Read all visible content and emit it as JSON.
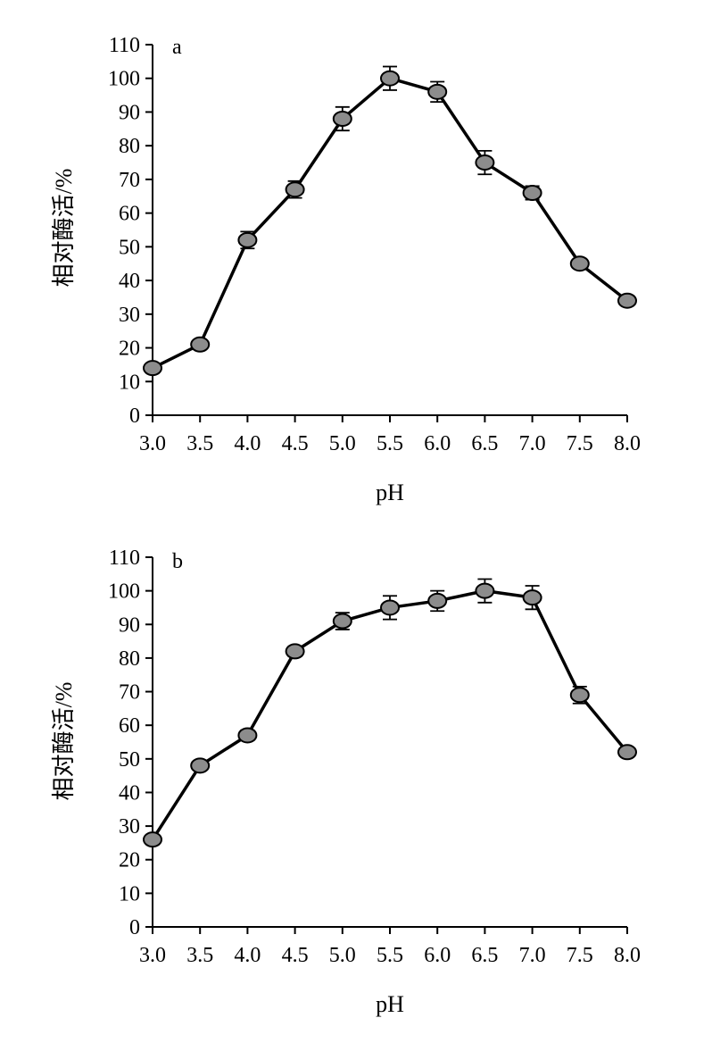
{
  "colors": {
    "marker_fill": "#8c8c8c",
    "line": "#000000",
    "background": "#ffffff"
  },
  "chart_data": [
    {
      "type": "line",
      "panel": "a",
      "xlabel": "pH",
      "ylabel": "相对酶活/%",
      "categories": [
        "3.0",
        "3.5",
        "4.0",
        "4.5",
        "5.0",
        "5.5",
        "6.0",
        "6.5",
        "7.0",
        "7.5",
        "8.0"
      ],
      "x": [
        3.0,
        3.5,
        4.0,
        4.5,
        5.0,
        5.5,
        6.0,
        6.5,
        7.0,
        7.5,
        8.0
      ],
      "y_ticks": [
        "0",
        "10",
        "20",
        "30",
        "40",
        "50",
        "60",
        "70",
        "80",
        "90",
        "100",
        "110"
      ],
      "ylim": [
        0,
        110
      ],
      "grid": false,
      "series": [
        {
          "values": [
            14,
            21,
            52,
            67,
            88,
            100,
            96,
            75,
            66,
            45,
            34
          ],
          "error": [
            1,
            1,
            2.5,
            2.5,
            3.5,
            3.5,
            3,
            3.5,
            2,
            1,
            1
          ]
        }
      ]
    },
    {
      "type": "line",
      "panel": "b",
      "xlabel": "pH",
      "ylabel": "相对酶活/%",
      "categories": [
        "3.0",
        "3.5",
        "4.0",
        "4.5",
        "5.0",
        "5.5",
        "6.0",
        "6.5",
        "7.0",
        "7.5",
        "8.0"
      ],
      "x": [
        3.0,
        3.5,
        4.0,
        4.5,
        5.0,
        5.5,
        6.0,
        6.5,
        7.0,
        7.5,
        8.0
      ],
      "y_ticks": [
        "0",
        "10",
        "20",
        "30",
        "40",
        "50",
        "60",
        "70",
        "80",
        "90",
        "100",
        "110"
      ],
      "ylim": [
        0,
        110
      ],
      "grid": false,
      "series": [
        {
          "values": [
            26,
            48,
            57,
            82,
            91,
            95,
            97,
            100,
            98,
            69,
            52
          ],
          "error": [
            1,
            1,
            1.5,
            1.5,
            2.5,
            3.5,
            3,
            3.5,
            3.5,
            2.5,
            1
          ]
        }
      ]
    }
  ]
}
